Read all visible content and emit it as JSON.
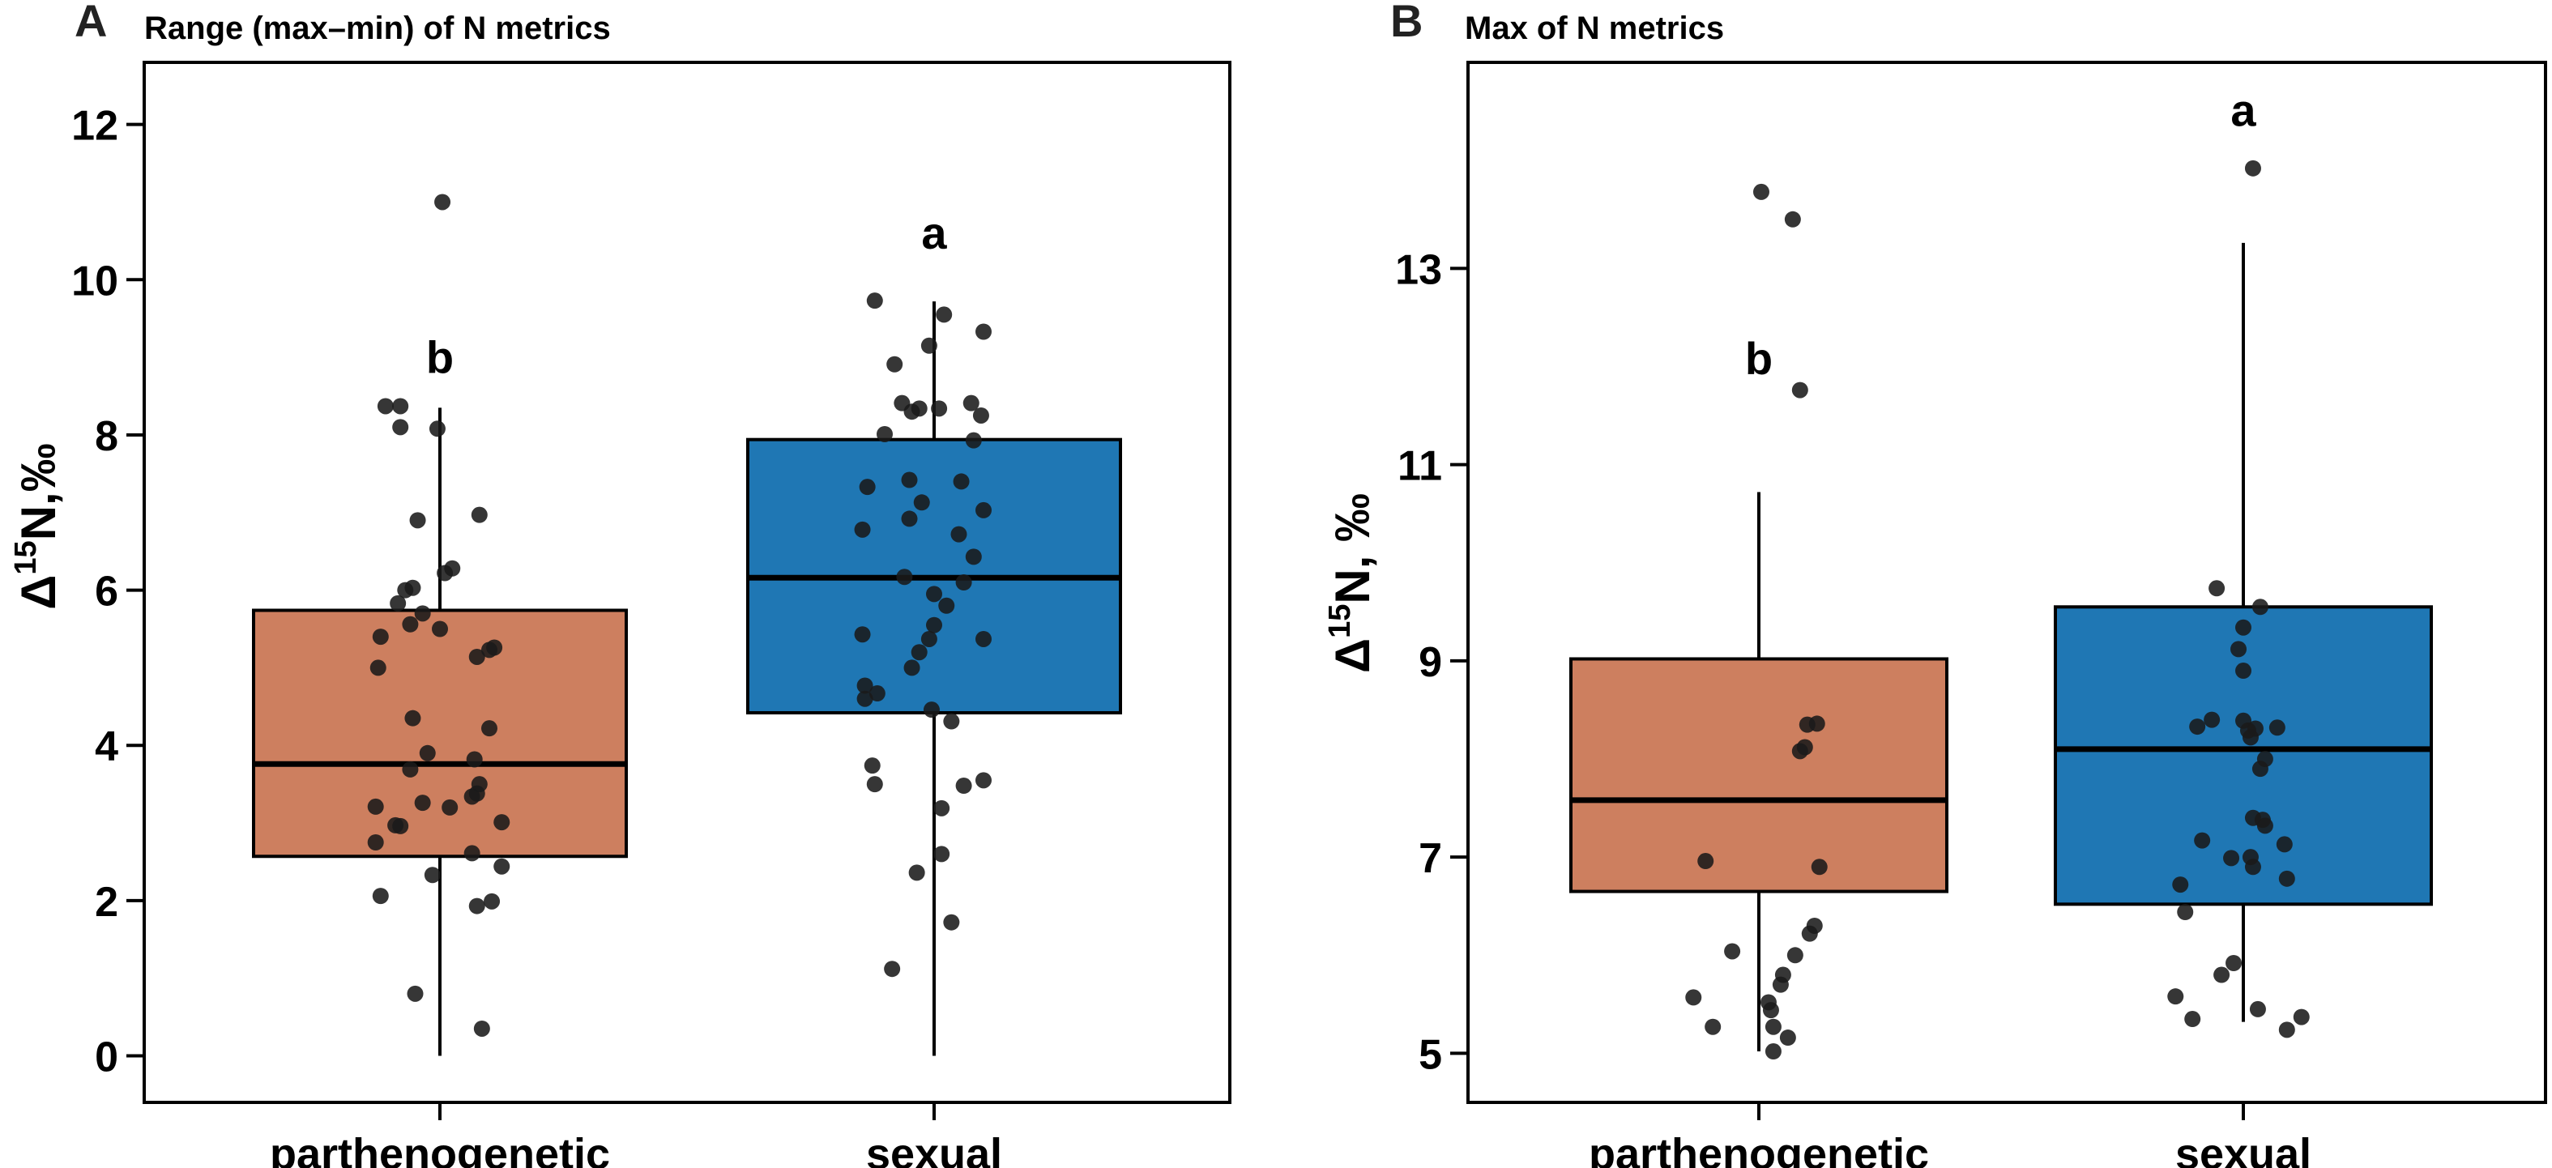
{
  "figure": {
    "panel_a_letter": "A",
    "panel_b_letter": "B"
  },
  "chart_data": [
    {
      "type": "box",
      "panel": "A",
      "title": "Range (max–min) of N metrics",
      "ylabel_prefix": "Δ",
      "ylabel_sup": "15",
      "ylabel_suffix": "N,‰",
      "xlabel": "",
      "ylim": [
        -0.6,
        12.8
      ],
      "yticks": [
        0,
        2,
        4,
        6,
        8,
        10,
        12
      ],
      "categories": [
        "parthenogenetic",
        "sexual"
      ],
      "colors": [
        "#cd7f5f",
        "#1f77b4"
      ],
      "boxes": [
        {
          "q1": 2.57,
          "median": 3.76,
          "q3": 5.74,
          "whisker_low": 0.0,
          "whisker_high": 8.35,
          "sig_letter": "b",
          "sig_y": 8.8
        },
        {
          "q1": 4.42,
          "median": 6.16,
          "q3": 7.94,
          "whisker_low": 0.0,
          "whisker_high": 9.72,
          "sig_letter": "a",
          "sig_y": 10.4
        }
      ],
      "points": [
        [
          [
            -0.22,
            8.37
          ],
          [
            -0.16,
            8.37
          ],
          [
            -0.16,
            8.1
          ],
          [
            -0.01,
            8.08
          ],
          [
            0.16,
            6.97
          ],
          [
            -0.09,
            6.9
          ],
          [
            0.05,
            6.28
          ],
          [
            0.02,
            6.22
          ],
          [
            -0.14,
            6.0
          ],
          [
            -0.11,
            6.03
          ],
          [
            -0.17,
            5.83
          ],
          [
            -0.07,
            5.7
          ],
          [
            -0.12,
            5.56
          ],
          [
            0.0,
            5.5
          ],
          [
            -0.24,
            5.4
          ],
          [
            -0.25,
            5.0
          ],
          [
            0.15,
            5.14
          ],
          [
            0.22,
            5.26
          ],
          [
            0.2,
            5.23
          ],
          [
            -0.11,
            4.35
          ],
          [
            0.2,
            4.22
          ],
          [
            -0.05,
            3.9
          ],
          [
            0.14,
            3.82
          ],
          [
            -0.12,
            3.69
          ],
          [
            0.16,
            3.5
          ],
          [
            0.13,
            3.34
          ],
          [
            0.15,
            3.38
          ],
          [
            -0.26,
            3.21
          ],
          [
            -0.07,
            3.26
          ],
          [
            0.04,
            3.2
          ],
          [
            0.25,
            3.01
          ],
          [
            -0.18,
            2.97
          ],
          [
            -0.16,
            2.96
          ],
          [
            -0.26,
            2.75
          ],
          [
            0.13,
            2.61
          ],
          [
            0.25,
            2.44
          ],
          [
            -0.03,
            2.33
          ],
          [
            -0.24,
            2.06
          ],
          [
            0.21,
            1.99
          ],
          [
            0.15,
            1.93
          ],
          [
            -0.1,
            0.8
          ],
          [
            0.17,
            0.35
          ],
          [
            0.01,
            11.0
          ]
        ],
        [
          [
            -0.24,
            9.73
          ],
          [
            0.04,
            9.55
          ],
          [
            0.2,
            9.33
          ],
          [
            -0.02,
            9.15
          ],
          [
            -0.16,
            8.91
          ],
          [
            -0.13,
            8.41
          ],
          [
            -0.09,
            8.3
          ],
          [
            -0.06,
            8.34
          ],
          [
            0.02,
            8.34
          ],
          [
            0.15,
            8.41
          ],
          [
            0.19,
            8.25
          ],
          [
            -0.2,
            8.01
          ],
          [
            0.16,
            7.93
          ],
          [
            -0.1,
            7.42
          ],
          [
            0.11,
            7.4
          ],
          [
            -0.27,
            7.33
          ],
          [
            -0.05,
            7.13
          ],
          [
            0.2,
            7.03
          ],
          [
            -0.1,
            6.92
          ],
          [
            -0.29,
            6.78
          ],
          [
            0.1,
            6.72
          ],
          [
            0.16,
            6.43
          ],
          [
            -0.12,
            6.17
          ],
          [
            0.12,
            6.1
          ],
          [
            0.0,
            5.95
          ],
          [
            0.05,
            5.8
          ],
          [
            0.0,
            5.55
          ],
          [
            -0.02,
            5.37
          ],
          [
            0.2,
            5.37
          ],
          [
            -0.29,
            5.43
          ],
          [
            -0.06,
            5.2
          ],
          [
            -0.09,
            5.0
          ],
          [
            -0.28,
            4.77
          ],
          [
            -0.23,
            4.67
          ],
          [
            -0.28,
            4.6
          ],
          [
            -0.01,
            4.46
          ],
          [
            0.07,
            4.31
          ],
          [
            -0.25,
            3.74
          ],
          [
            -0.24,
            3.5
          ],
          [
            0.12,
            3.48
          ],
          [
            0.2,
            3.55
          ],
          [
            0.03,
            3.19
          ],
          [
            0.03,
            2.6
          ],
          [
            -0.07,
            2.36
          ],
          [
            0.07,
            1.72
          ],
          [
            -0.17,
            1.12
          ]
        ]
      ]
    },
    {
      "type": "box",
      "panel": "B",
      "title": "Max of N metrics",
      "ylabel_prefix": "Δ",
      "ylabel_sup": "15",
      "ylabel_suffix": "N, ‰",
      "xlabel": "",
      "ylim": [
        4.5,
        15.1
      ],
      "yticks": [
        5,
        7,
        9,
        11,
        13
      ],
      "categories": [
        "parthenogenetic",
        "sexual"
      ],
      "colors": [
        "#cd7f5f",
        "#1f77b4"
      ],
      "boxes": [
        {
          "q1": 6.65,
          "median": 7.58,
          "q3": 9.02,
          "whisker_low": 5.02,
          "whisker_high": 10.72,
          "sig_letter": "b",
          "sig_y": 11.92
        },
        {
          "q1": 6.52,
          "median": 8.1,
          "q3": 9.55,
          "whisker_low": 5.32,
          "whisker_high": 13.26,
          "sig_letter": "a",
          "sig_y": 14.45
        }
      ],
      "points": [
        [
          [
            0.01,
            13.78
          ],
          [
            0.14,
            13.5
          ],
          [
            0.17,
            11.76
          ],
          [
            0.24,
            8.36
          ],
          [
            0.2,
            8.35
          ],
          [
            0.17,
            8.08
          ],
          [
            0.19,
            8.12
          ],
          [
            -0.22,
            6.96
          ],
          [
            0.25,
            6.9
          ],
          [
            0.23,
            6.3
          ],
          [
            0.21,
            6.22
          ],
          [
            -0.11,
            6.04
          ],
          [
            0.15,
            6.0
          ],
          [
            0.1,
            5.8
          ],
          [
            0.09,
            5.7
          ],
          [
            -0.27,
            5.57
          ],
          [
            0.04,
            5.52
          ],
          [
            0.05,
            5.44
          ],
          [
            -0.19,
            5.27
          ],
          [
            0.06,
            5.27
          ],
          [
            0.12,
            5.16
          ],
          [
            0.06,
            5.02
          ]
        ],
        [
          [
            0.04,
            14.02
          ],
          [
            -0.11,
            9.74
          ],
          [
            0.07,
            9.55
          ],
          [
            0.0,
            9.34
          ],
          [
            -0.02,
            9.12
          ],
          [
            0.0,
            8.9
          ],
          [
            -0.13,
            8.4
          ],
          [
            -0.19,
            8.33
          ],
          [
            0.0,
            8.39
          ],
          [
            0.05,
            8.31
          ],
          [
            0.02,
            8.29
          ],
          [
            0.14,
            8.32
          ],
          [
            0.03,
            8.22
          ],
          [
            0.09,
            8.0
          ],
          [
            0.07,
            7.9
          ],
          [
            0.04,
            7.4
          ],
          [
            0.08,
            7.38
          ],
          [
            0.09,
            7.32
          ],
          [
            -0.17,
            7.17
          ],
          [
            0.17,
            7.13
          ],
          [
            -0.05,
            6.99
          ],
          [
            0.03,
            7.0
          ],
          [
            0.04,
            6.9
          ],
          [
            0.18,
            6.78
          ],
          [
            -0.26,
            6.72
          ],
          [
            -0.24,
            6.44
          ],
          [
            -0.04,
            5.92
          ],
          [
            -0.09,
            5.8
          ],
          [
            -0.28,
            5.58
          ],
          [
            0.06,
            5.45
          ],
          [
            0.24,
            5.37
          ],
          [
            -0.21,
            5.35
          ],
          [
            0.18,
            5.24
          ]
        ]
      ]
    }
  ]
}
